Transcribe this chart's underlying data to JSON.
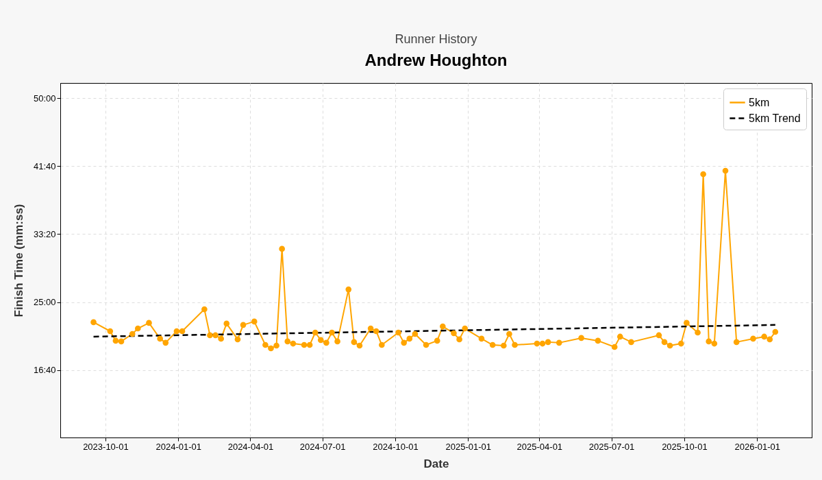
{
  "chart_data": {
    "type": "line",
    "title": "Andrew Houghton",
    "subtitle": "Runner History",
    "xlabel": "Date",
    "ylabel": "Finish Time (mm:ss)",
    "xlim": [
      "2023-08-05",
      "2026-03-11"
    ],
    "xticks": [
      "2023-10-01",
      "2024-01-01",
      "2024-04-01",
      "2024-07-01",
      "2024-10-01",
      "2025-01-01",
      "2025-04-01",
      "2025-07-01",
      "2025-10-01",
      "2026-01-01"
    ],
    "ylim": [
      506,
      3111
    ],
    "yticks": [
      {
        "value": 1000,
        "label": "16:40"
      },
      {
        "value": 1500,
        "label": "25:00"
      },
      {
        "value": 2000,
        "label": "33:20"
      },
      {
        "value": 2500,
        "label": "41:40"
      },
      {
        "value": 3000,
        "label": "50:00"
      }
    ],
    "grid": true,
    "legend": "top right",
    "series": [
      {
        "name": "5km",
        "color": "#ffa500",
        "marker": "circle",
        "line_style": "solid",
        "x": [
          "2023-09-16",
          "2023-10-07",
          "2023-10-14",
          "2023-10-21",
          "2023-11-04",
          "2023-11-11",
          "2023-11-25",
          "2023-12-09",
          "2023-12-16",
          "2023-12-30",
          "2024-01-06",
          "2024-02-03",
          "2024-02-10",
          "2024-02-17",
          "2024-02-24",
          "2024-03-02",
          "2024-03-16",
          "2024-03-23",
          "2024-04-06",
          "2024-04-20",
          "2024-04-27",
          "2024-05-04",
          "2024-05-11",
          "2024-05-18",
          "2024-05-25",
          "2024-06-08",
          "2024-06-15",
          "2024-06-22",
          "2024-06-29",
          "2024-07-06",
          "2024-07-13",
          "2024-07-20",
          "2024-08-03",
          "2024-08-10",
          "2024-08-17",
          "2024-08-31",
          "2024-09-07",
          "2024-09-14",
          "2024-10-05",
          "2024-10-12",
          "2024-10-19",
          "2024-10-26",
          "2024-11-09",
          "2024-11-23",
          "2024-11-30",
          "2024-12-14",
          "2024-12-21",
          "2024-12-28",
          "2025-01-18",
          "2025-02-01",
          "2025-02-15",
          "2025-02-22",
          "2025-03-01",
          "2025-03-29",
          "2025-04-05",
          "2025-04-12",
          "2025-04-26",
          "2025-05-24",
          "2025-06-14",
          "2025-07-05",
          "2025-07-12",
          "2025-07-26",
          "2025-08-30",
          "2025-09-06",
          "2025-09-13",
          "2025-09-27",
          "2025-10-04",
          "2025-10-18",
          "2025-10-25",
          "2025-11-01",
          "2025-11-08",
          "2025-11-22",
          "2025-12-06",
          "2025-12-27",
          "2026-01-10",
          "2026-01-17",
          "2026-01-24"
        ],
        "values": [
          1353,
          1287,
          1217,
          1212,
          1267,
          1307,
          1348,
          1232,
          1202,
          1287,
          1287,
          1448,
          1257,
          1257,
          1232,
          1343,
          1227,
          1333,
          1358,
          1186,
          1161,
          1181,
          1892,
          1212,
          1196,
          1186,
          1186,
          1277,
          1222,
          1202,
          1277,
          1212,
          1594,
          1207,
          1181,
          1307,
          1287,
          1186,
          1277,
          1202,
          1232,
          1267,
          1186,
          1217,
          1322,
          1272,
          1227,
          1307,
          1232,
          1186,
          1181,
          1267,
          1186,
          1196,
          1196,
          1207,
          1202,
          1237,
          1217,
          1171,
          1247,
          1207,
          1257,
          1207,
          1181,
          1196,
          1348,
          1277,
          2441,
          1212,
          1196,
          2466,
          1207,
          1232,
          1247,
          1227,
          1282
        ]
      },
      {
        "name": "5km Trend",
        "color": "#000000",
        "marker": "none",
        "line_style": "dashed",
        "x": [
          "2023-09-16",
          "2026-01-24"
        ],
        "values": [
          1247,
          1333
        ]
      }
    ]
  }
}
